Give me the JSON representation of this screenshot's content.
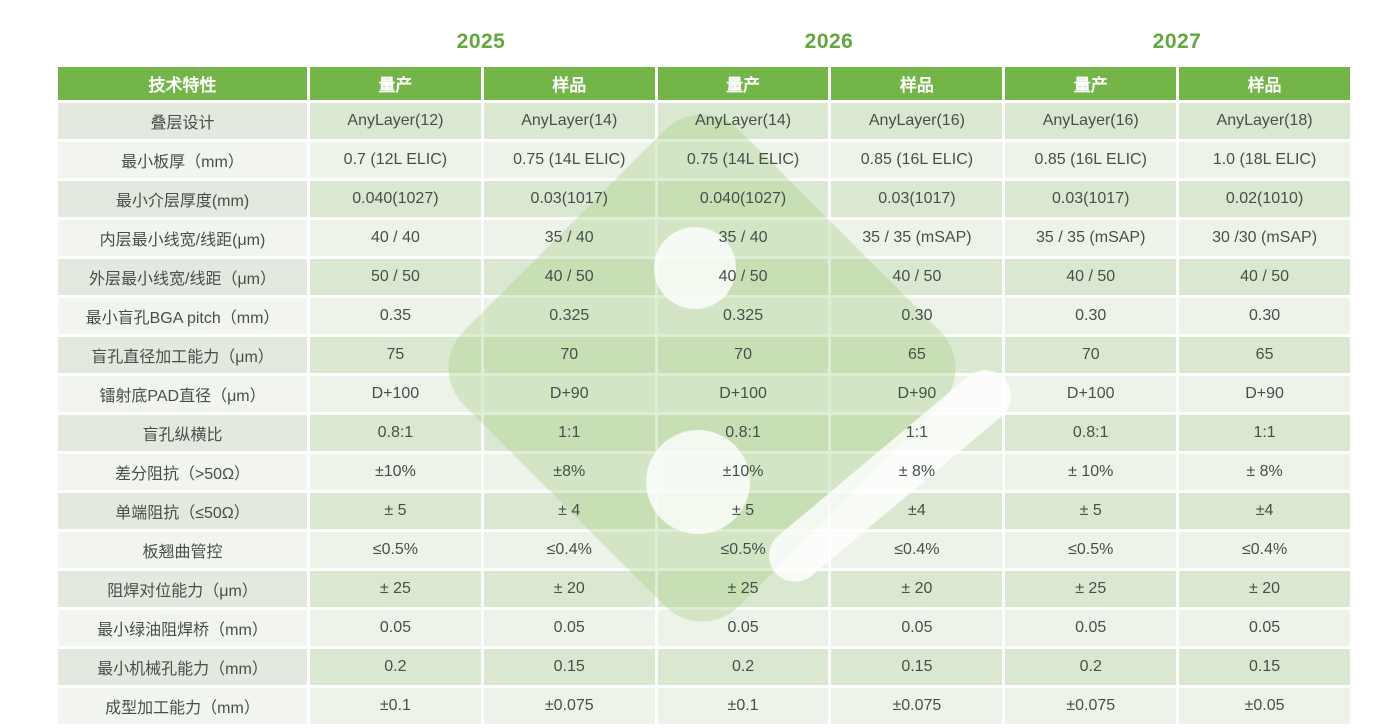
{
  "colors": {
    "header_green": "#73b549",
    "year_green": "#61a73e",
    "label_row_dark": "#e3e9df",
    "label_row_light": "#f2f5ef",
    "value_row_dark": "#dbe8d1",
    "value_row_light": "#eef3e9",
    "body_text": "#45504a",
    "watermark_green": "#a9cf8b"
  },
  "years": [
    "2025",
    "2026",
    "2027"
  ],
  "table": {
    "header": [
      "技术特性",
      "量产",
      "样品",
      "量产",
      "样品",
      "量产",
      "样品"
    ],
    "rows": [
      {
        "label": "叠层设计",
        "values": [
          "AnyLayer(12)",
          "AnyLayer(14)",
          "AnyLayer(14)",
          "AnyLayer(16)",
          "AnyLayer(16)",
          "AnyLayer(18)"
        ]
      },
      {
        "label": "最小板厚（mm）",
        "values": [
          "0.7 (12L ELIC)",
          "0.75 (14L ELIC)",
          "0.75 (14L ELIC)",
          "0.85 (16L ELIC)",
          "0.85 (16L ELIC)",
          "1.0 (18L ELIC)"
        ]
      },
      {
        "label": "最小介层厚度(mm)",
        "values": [
          "0.040(1027)",
          "0.03(1017)",
          "0.040(1027)",
          "0.03(1017)",
          "0.03(1017)",
          "0.02(1010)"
        ]
      },
      {
        "label": "内层最小线宽/线距(μm)",
        "values": [
          "40 / 40",
          "35 / 40",
          "35 / 40",
          "35 / 35 (mSAP)",
          "35 / 35 (mSAP)",
          "30 /30 (mSAP)"
        ]
      },
      {
        "label": "外层最小线宽/线距（μm）",
        "values": [
          "50 / 50",
          "40 / 50",
          "40 / 50",
          "40 / 50",
          "40 / 50",
          "40 / 50"
        ]
      },
      {
        "label": "最小盲孔BGA pitch（mm）",
        "values": [
          "0.35",
          "0.325",
          "0.325",
          "0.30",
          "0.30",
          "0.30"
        ]
      },
      {
        "label": "盲孔直径加工能力（μm）",
        "values": [
          "75",
          "70",
          "70",
          "65",
          "70",
          "65"
        ]
      },
      {
        "label": "镭射底PAD直径（μm）",
        "values": [
          "D+100",
          "D+90",
          "D+100",
          "D+90",
          "D+100",
          "D+90"
        ]
      },
      {
        "label": "盲孔纵横比",
        "values": [
          "0.8:1",
          "1:1",
          "0.8:1",
          "1:1",
          "0.8:1",
          "1:1"
        ]
      },
      {
        "label": "差分阻抗（>50Ω）",
        "values": [
          "±10%",
          "±8%",
          "±10%",
          "± 8%",
          "± 10%",
          "± 8%"
        ]
      },
      {
        "label": "单端阻抗（≤50Ω）",
        "values": [
          "± 5",
          "± 4",
          "± 5",
          "±4",
          "± 5",
          "±4"
        ]
      },
      {
        "label": "板翘曲管控",
        "values": [
          "≤0.5%",
          "≤0.4%",
          "≤0.5%",
          "≤0.4%",
          "≤0.5%",
          "≤0.4%"
        ]
      },
      {
        "label": "阻焊对位能力（μm）",
        "values": [
          "± 25",
          "± 20",
          "± 25",
          "± 20",
          "± 25",
          "± 20"
        ]
      },
      {
        "label": "最小绿油阻焊桥（mm）",
        "values": [
          "0.05",
          "0.05",
          "0.05",
          "0.05",
          "0.05",
          "0.05"
        ]
      },
      {
        "label": "最小机械孔能力（mm）",
        "values": [
          "0.2",
          "0.15",
          "0.2",
          "0.15",
          "0.2",
          "0.15"
        ]
      },
      {
        "label": "成型加工能力（mm）",
        "values": [
          "±0.1",
          "±0.075",
          "±0.1",
          "±0.075",
          "±0.075",
          "±0.05"
        ]
      }
    ]
  }
}
